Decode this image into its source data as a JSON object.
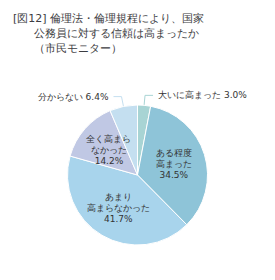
{
  "chart_data": {
    "type": "pie",
    "title": "[図12] 倫理法・倫理規程により、国家\n      公務員に対する信頼は高まったか\n      （市民モニター）",
    "values": [
      3.0,
      34.5,
      41.7,
      14.2,
      6.4
    ],
    "value_labels": [
      "大いに高まった 3.0%",
      "ある程度\n高まった\n34.5%",
      "あまり\n高まらなかった\n41.7%",
      "全く高まら\nなかった\n14.2%",
      "分からない 6.4%"
    ],
    "colors": [
      "#a8d4d4",
      "#8ec4d8",
      "#a8d4ec",
      "#c0c8e4",
      "#c4dff0"
    ]
  }
}
